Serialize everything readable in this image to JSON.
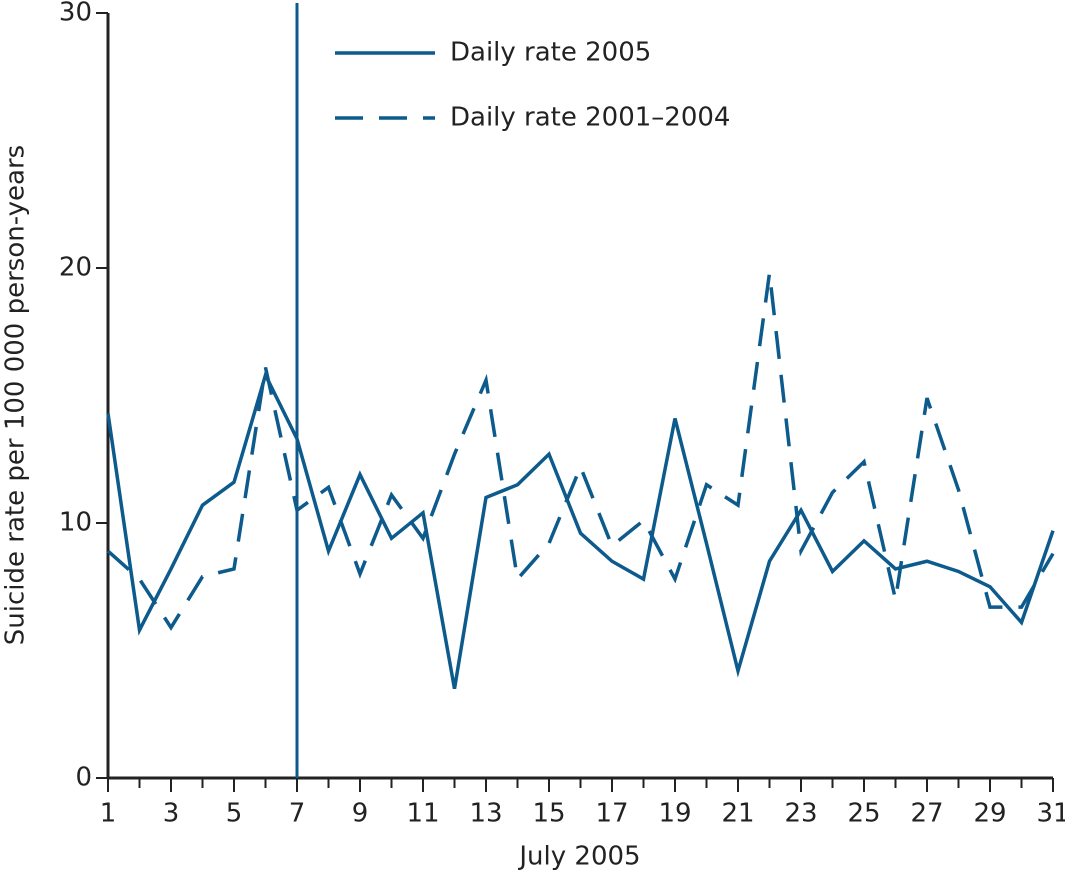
{
  "chart_data": {
    "type": "line",
    "x_label": "July 2005",
    "y_label": "Suicide rate per 100 000 person-years",
    "x": [
      1,
      2,
      3,
      4,
      5,
      6,
      7,
      8,
      9,
      10,
      11,
      12,
      13,
      14,
      15,
      16,
      17,
      18,
      19,
      20,
      21,
      22,
      23,
      24,
      25,
      26,
      27,
      28,
      29,
      30,
      31
    ],
    "series": [
      {
        "name": "Daily rate 2005",
        "color": "#0d5a8c",
        "dash": "solid",
        "values": [
          14.3,
          5.8,
          8.2,
          10.7,
          11.6,
          15.8,
          13.3,
          8.9,
          11.9,
          9.4,
          10.4,
          3.5,
          11.0,
          11.5,
          12.7,
          9.6,
          8.5,
          7.8,
          14.1,
          9.2,
          4.2,
          8.5,
          10.5,
          8.1,
          9.3,
          8.2,
          8.5,
          8.1,
          7.5,
          6.1,
          9.7
        ]
      },
      {
        "name": "Daily rate 2001–2004",
        "color": "#0d5a8c",
        "dash": "dashed",
        "values": [
          8.9,
          7.8,
          5.9,
          7.9,
          8.2,
          16.1,
          10.5,
          11.4,
          8.0,
          11.1,
          9.4,
          12.7,
          15.6,
          7.8,
          9.2,
          12.2,
          9.1,
          10.1,
          7.8,
          11.5,
          10.7,
          19.8,
          8.9,
          11.2,
          12.4,
          7.0,
          14.9,
          11.3,
          6.7,
          6.7,
          8.8
        ]
      }
    ],
    "marker_x": 7,
    "xlim": [
      1,
      31
    ],
    "xticks": [
      1,
      3,
      5,
      7,
      9,
      11,
      13,
      15,
      17,
      19,
      21,
      23,
      25,
      27,
      29,
      31
    ],
    "ylim": [
      0,
      30
    ],
    "yticks": [
      0,
      10,
      20,
      30
    ],
    "legend": "upper center",
    "grid": false
  }
}
